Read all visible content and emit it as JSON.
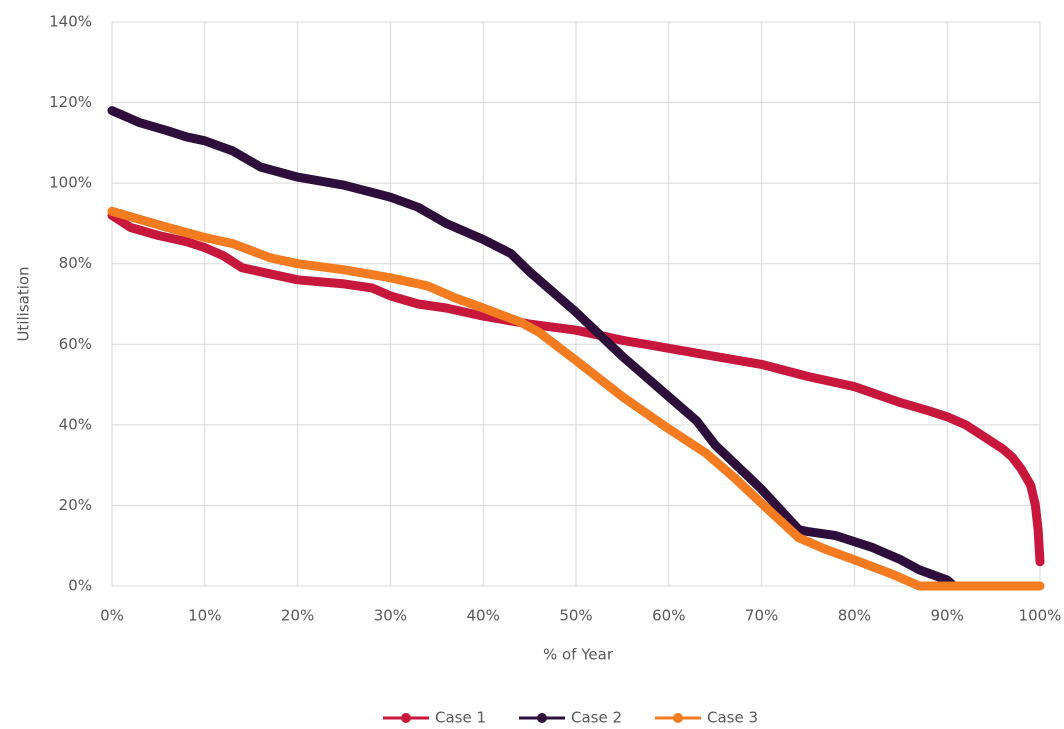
{
  "chart_data": {
    "type": "line",
    "x_label": "% of Year",
    "y_label": "Utilisation",
    "xlim": [
      0,
      100
    ],
    "ylim": [
      0,
      140
    ],
    "xticks": [
      {
        "value": 0,
        "label": "0%"
      },
      {
        "value": 10,
        "label": "10%"
      },
      {
        "value": 20,
        "label": "20%"
      },
      {
        "value": 30,
        "label": "30%"
      },
      {
        "value": 40,
        "label": "40%"
      },
      {
        "value": 50,
        "label": "50%"
      },
      {
        "value": 60,
        "label": "60%"
      },
      {
        "value": 70,
        "label": "70%"
      },
      {
        "value": 80,
        "label": "80%"
      },
      {
        "value": 90,
        "label": "90%"
      },
      {
        "value": 100,
        "label": "100%"
      }
    ],
    "yticks": [
      {
        "value": 0,
        "label": "0%"
      },
      {
        "value": 20,
        "label": "20%"
      },
      {
        "value": 40,
        "label": "40%"
      },
      {
        "value": 60,
        "label": "60%"
      },
      {
        "value": 80,
        "label": "80%"
      },
      {
        "value": 100,
        "label": "100%"
      },
      {
        "value": 120,
        "label": "120%"
      },
      {
        "value": 140,
        "label": "140%"
      }
    ],
    "grid": true,
    "legend": "bottom",
    "series": [
      {
        "name": "Case 1",
        "color": "#c8173c",
        "x": [
          0,
          2,
          5,
          8,
          10,
          12,
          14,
          17,
          20,
          25,
          28,
          30,
          33,
          36,
          40,
          45,
          50,
          55,
          60,
          65,
          70,
          75,
          80,
          85,
          88,
          90,
          92,
          94,
          96,
          97,
          98,
          99,
          99.5,
          99.8,
          100
        ],
        "values": [
          92,
          89,
          87,
          85.5,
          84,
          82,
          79,
          77.5,
          76,
          75,
          74,
          72,
          70,
          69,
          67,
          65,
          63.5,
          61,
          59,
          57,
          55,
          52,
          49.5,
          45.5,
          43.5,
          42,
          40,
          37,
          34,
          32,
          29,
          25,
          20,
          14,
          6
        ]
      },
      {
        "name": "Case 2",
        "color": "#2e0f3b",
        "x": [
          0,
          3,
          6,
          8,
          10,
          13,
          16,
          20,
          25,
          30,
          33,
          36,
          40,
          43,
          45,
          50,
          55,
          60,
          63,
          65,
          70,
          74,
          75,
          78,
          82,
          85,
          87,
          90,
          90.5
        ],
        "values": [
          118,
          115,
          113,
          111.5,
          110.5,
          108,
          104,
          101.5,
          99.5,
          96.5,
          94,
          90,
          86,
          82.5,
          78,
          68,
          57,
          47,
          41,
          35,
          24,
          14,
          13.5,
          12.5,
          9.5,
          6.5,
          4,
          1.5,
          0.5
        ]
      },
      {
        "name": "Case 3",
        "color": "#f47b20",
        "x": [
          0,
          3,
          6,
          10,
          13,
          17,
          20,
          25,
          30,
          34,
          37,
          40,
          44,
          46,
          50,
          55,
          60,
          64,
          67,
          70,
          74,
          77,
          80,
          84,
          87,
          90,
          95,
          100
        ],
        "values": [
          93,
          91,
          89,
          86.5,
          85,
          81.5,
          80,
          78.5,
          76.5,
          74.5,
          71.5,
          69,
          65.5,
          63,
          56,
          47,
          39,
          33,
          27,
          20.5,
          12,
          9,
          6.5,
          3,
          0,
          0,
          0,
          0
        ]
      }
    ]
  }
}
